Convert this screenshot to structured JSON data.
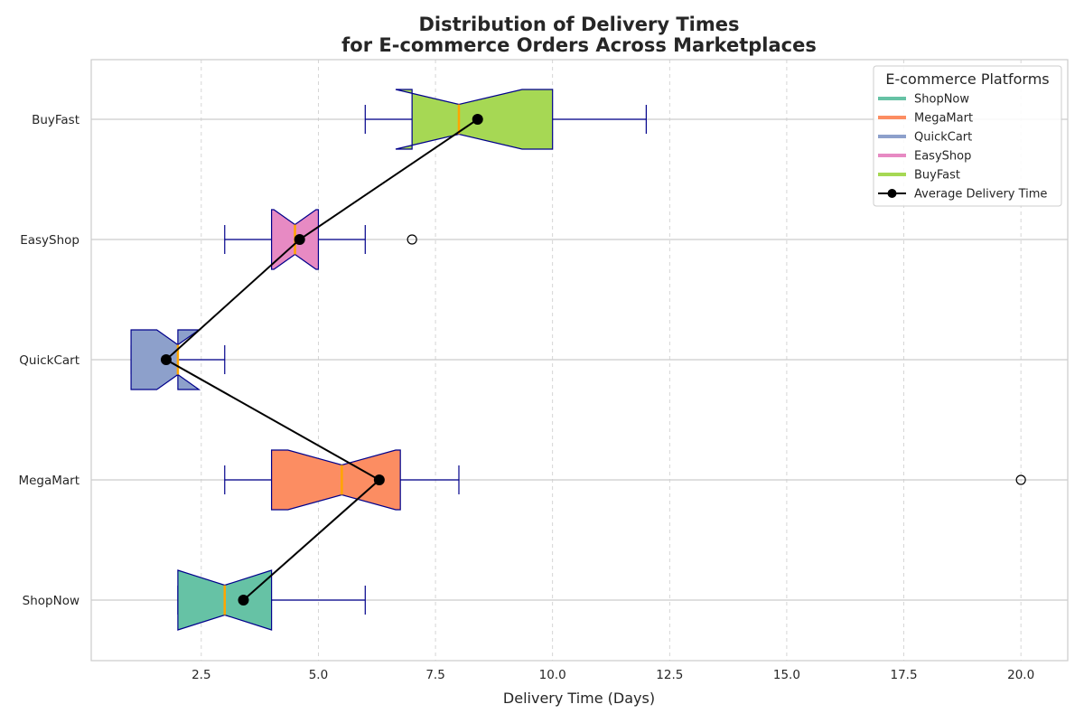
{
  "chart_data": {
    "type": "boxplot",
    "orientation": "horizontal",
    "notched": true,
    "title_line1": "Distribution of Delivery Times",
    "title_line2": "for E-commerce Orders Across Marketplaces",
    "xlabel": "Delivery Time (Days)",
    "ylabel": "",
    "xlim": [
      0.15,
      21.0
    ],
    "xticks": [
      "2.5",
      "5.0",
      "7.5",
      "10.0",
      "12.5",
      "15.0",
      "17.5",
      "20.0"
    ],
    "grid": {
      "x": "dashed",
      "y": "solid"
    },
    "categories": [
      "ShopNow",
      "MegaMart",
      "QuickCart",
      "EasyShop",
      "BuyFast"
    ],
    "boxes": [
      {
        "name": "ShopNow",
        "color": "#66c2a5",
        "whisker_low": 2,
        "q1": 2,
        "median": 3,
        "q3": 4,
        "whisker_high": 6,
        "notch_low": 2.0,
        "notch_high": 4.0,
        "mean": 3.4,
        "outliers": []
      },
      {
        "name": "MegaMart",
        "color": "#fc8d62",
        "whisker_low": 3,
        "q1": 4,
        "median": 5.5,
        "q3": 6.75,
        "whisker_high": 8,
        "notch_low": 4.35,
        "notch_high": 6.65,
        "mean": 6.3,
        "outliers": [
          20
        ]
      },
      {
        "name": "QuickCart",
        "color": "#8da0cb",
        "whisker_low": 1,
        "q1": 1,
        "median": 2,
        "q3": 2,
        "whisker_high": 3,
        "notch_low": 1.55,
        "notch_high": 2.45,
        "mean": 1.75,
        "outliers": []
      },
      {
        "name": "EasyShop",
        "color": "#e78ac3",
        "whisker_low": 3,
        "q1": 4,
        "median": 4.5,
        "q3": 5,
        "whisker_high": 6,
        "notch_low": 4.05,
        "notch_high": 4.95,
        "mean": 4.6,
        "outliers": [
          7
        ]
      },
      {
        "name": "BuyFast",
        "color": "#a6d854",
        "whisker_low": 6,
        "q1": 7,
        "median": 8,
        "q3": 10,
        "whisker_high": 12,
        "notch_low": 6.65,
        "notch_high": 9.35,
        "mean": 8.4,
        "outliers": []
      }
    ],
    "mean_line": {
      "name": "Average Delivery Time",
      "color": "#000000"
    },
    "legend": {
      "title": "E-commerce Platforms",
      "placement": "top-right",
      "entries": [
        "ShopNow",
        "MegaMart",
        "QuickCart",
        "EasyShop",
        "BuyFast",
        "Average Delivery Time"
      ]
    },
    "colors": {
      "box_edge": "#00008b",
      "whisker": "#00008b",
      "median": "#ffa500",
      "grid": "#cccccc",
      "axes": "#cccccc"
    }
  }
}
